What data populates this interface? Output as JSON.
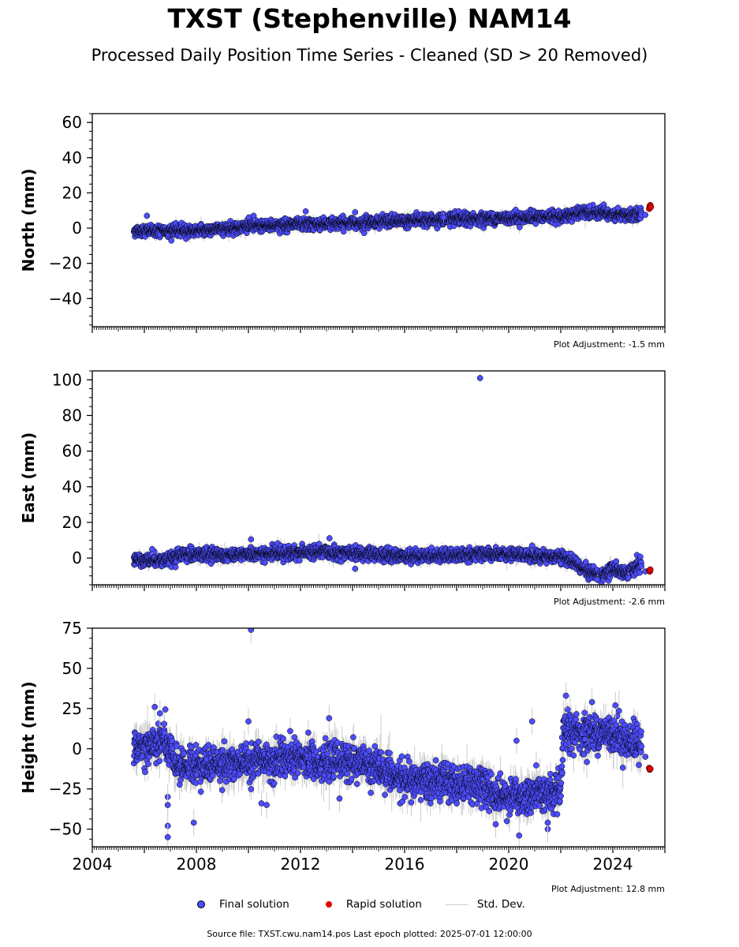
{
  "title": "TXST (Stephenville) NAM14",
  "subtitle": "Processed Daily Position Time Series - Cleaned (SD > 20 Removed)",
  "legend": {
    "final": "Final solution",
    "rapid": "Rapid solution",
    "std": "Std. Dev."
  },
  "footer": "Source file: TXST.cwu.nam14.pos  Last epoch plotted: 2025-07-01 12:00:00",
  "colors": {
    "final": "#4d4dff",
    "rapid": "#e00000",
    "stddev": "#cccccc",
    "marker_edge": "#000000"
  },
  "chart_data": [
    {
      "type": "scatter",
      "ylabel": "North (mm)",
      "xlim": [
        2004,
        2026
      ],
      "ylim": [
        -56,
        65
      ],
      "yticks": [
        60,
        40,
        20,
        0,
        -20,
        -40
      ],
      "ytick_labels": [
        "60",
        "40",
        "20",
        "0",
        "−20",
        "−40"
      ],
      "adjustment": "Plot Adjustment: -1.5 mm",
      "trend": [
        [
          2005.6,
          -1.5
        ],
        [
          2008,
          -1.5
        ],
        [
          2010,
          1
        ],
        [
          2014,
          3
        ],
        [
          2018,
          5
        ],
        [
          2022,
          6.5
        ],
        [
          2023,
          9
        ],
        [
          2024.5,
          7
        ],
        [
          2025.1,
          8
        ]
      ],
      "scatter_sd": 1.6,
      "outliers": [
        [
          2006.1,
          7
        ],
        [
          2010.2,
          7
        ],
        [
          2012.2,
          9.5
        ],
        [
          2014.1,
          9
        ],
        [
          2017.5,
          6
        ],
        [
          2023.1,
          12.5
        ],
        [
          2024.2,
          11.5
        ]
      ],
      "rapid": [
        [
          2025.4,
          11
        ],
        [
          2025.42,
          12.5
        ],
        [
          2025.44,
          13
        ],
        [
          2025.46,
          12
        ]
      ],
      "last_final": [
        [
          2025.25,
          7.5
        ]
      ]
    },
    {
      "type": "scatter",
      "ylabel": "East (mm)",
      "xlim": [
        2004,
        2026
      ],
      "ylim": [
        -15,
        105
      ],
      "yticks": [
        100,
        80,
        60,
        40,
        20,
        0
      ],
      "ytick_labels": [
        "100",
        "80",
        "60",
        "40",
        "20",
        "0"
      ],
      "adjustment": "Plot Adjustment: -2.6 mm",
      "trend": [
        [
          2005.6,
          -1
        ],
        [
          2007,
          -1
        ],
        [
          2007.5,
          2
        ],
        [
          2010,
          2
        ],
        [
          2013,
          3.5
        ],
        [
          2016,
          1
        ],
        [
          2019,
          2
        ],
        [
          2022,
          1
        ],
        [
          2022.5,
          -2
        ],
        [
          2023,
          -7
        ],
        [
          2023.5,
          -10
        ],
        [
          2024,
          -6
        ],
        [
          2024.5,
          -9
        ],
        [
          2025.1,
          -3
        ]
      ],
      "scatter_sd": 1.8,
      "outliers": [
        [
          2018.9,
          101
        ],
        [
          2010.1,
          10.5
        ],
        [
          2006.3,
          5
        ],
        [
          2020.9,
          7
        ],
        [
          2014.1,
          -6
        ],
        [
          2023.4,
          -12
        ],
        [
          2024.6,
          -11
        ]
      ],
      "rapid": [
        [
          2025.4,
          -7
        ],
        [
          2025.42,
          -7.5
        ],
        [
          2025.44,
          -6.5
        ]
      ],
      "last_final": [
        [
          2025.25,
          -7.5
        ]
      ]
    },
    {
      "type": "scatter",
      "ylabel": "Height (mm)",
      "xlabel": "",
      "xlim": [
        2004,
        2026
      ],
      "ylim": [
        -61,
        75
      ],
      "yticks": [
        75,
        50,
        25,
        0,
        -25,
        -50
      ],
      "ytick_labels": [
        "75",
        "50",
        "25",
        "0",
        "−25",
        "−50"
      ],
      "xticks": [
        2004,
        2008,
        2012,
        2016,
        2020,
        2024
      ],
      "xtick_labels": [
        "2004",
        "2008",
        "2012",
        "2016",
        "2020",
        "2024"
      ],
      "adjustment": "Plot Adjustment: 12.8 mm",
      "trend": [
        [
          2005.6,
          0
        ],
        [
          2006.3,
          3
        ],
        [
          2006.8,
          5
        ],
        [
          2007.2,
          -10
        ],
        [
          2008,
          -10
        ],
        [
          2010,
          -8
        ],
        [
          2012,
          -7
        ],
        [
          2014,
          -8
        ],
        [
          2015,
          -12
        ],
        [
          2016,
          -20
        ],
        [
          2017.5,
          -21
        ],
        [
          2019,
          -22
        ],
        [
          2019.5,
          -28
        ],
        [
          2020.5,
          -30
        ],
        [
          2021,
          -27
        ],
        [
          2022,
          -28
        ],
        [
          2022.1,
          10
        ],
        [
          2023,
          10
        ],
        [
          2024,
          10
        ],
        [
          2024.6,
          5
        ],
        [
          2025.1,
          2
        ]
      ],
      "scatter_sd": 5.5,
      "outliers": [
        [
          2010.1,
          74
        ],
        [
          2006.4,
          26
        ],
        [
          2006.6,
          22
        ],
        [
          2010,
          17
        ],
        [
          2012.3,
          10
        ],
        [
          2013.1,
          19
        ],
        [
          2020.3,
          5
        ],
        [
          2020.9,
          17
        ],
        [
          2022.2,
          33
        ],
        [
          2023.2,
          29
        ],
        [
          2024.1,
          27
        ],
        [
          2006.9,
          -30
        ],
        [
          2006.9,
          -35
        ],
        [
          2006.9,
          -48
        ],
        [
          2006.9,
          -55
        ],
        [
          2007.9,
          -46
        ],
        [
          2010.5,
          -34
        ],
        [
          2010.7,
          -35
        ],
        [
          2013.5,
          -31
        ],
        [
          2020.4,
          -54
        ],
        [
          2021.5,
          -50
        ],
        [
          2021.5,
          -46
        ],
        [
          2019.5,
          -47
        ]
      ],
      "rapid": [
        [
          2025.4,
          -12
        ],
        [
          2025.42,
          -13
        ],
        [
          2025.44,
          -12.5
        ]
      ],
      "last_final": [
        [
          2025.25,
          -5
        ]
      ]
    }
  ]
}
